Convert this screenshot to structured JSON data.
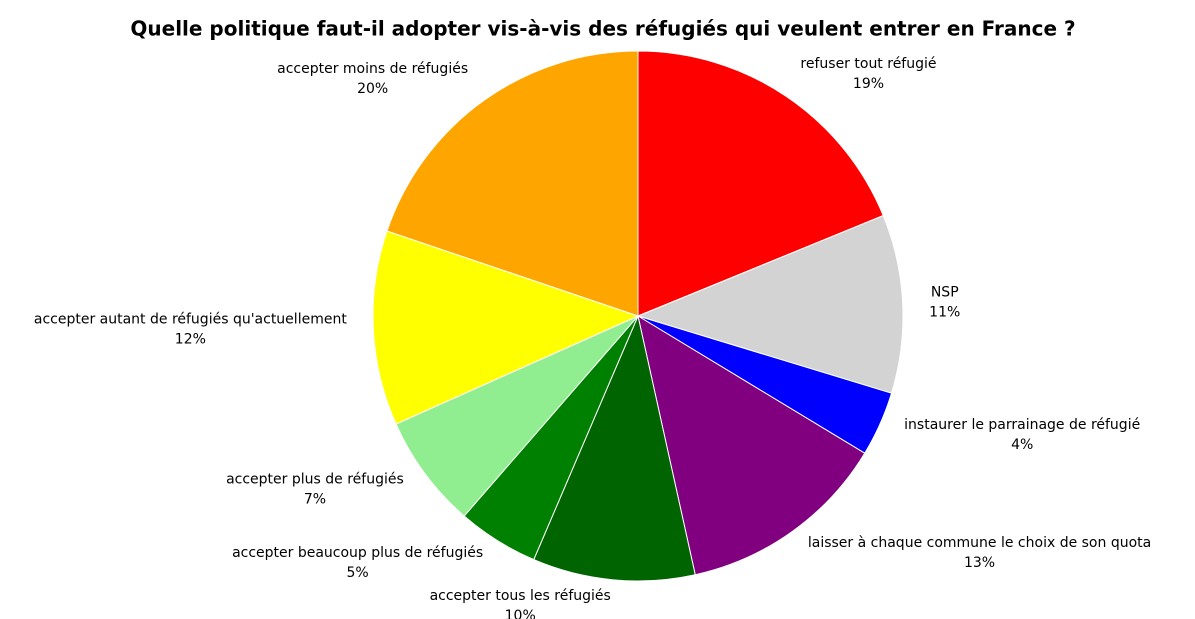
{
  "chart_data": {
    "type": "pie",
    "title": "Quelle politique faut-il adopter vis-à-vis des réfugiés qui veulent entrer en France ?",
    "categories": [
      "refuser tout réfugié",
      "NSP",
      "instaurer le parrainage de réfugié",
      "laisser à chaque commune le choix de son quota",
      "accepter tous les réfugiés",
      "accepter beaucoup plus de réfugiés",
      "accepter plus de réfugiés",
      "accepter autant de réfugiés qu'actuellement",
      "accepter moins de réfugiés"
    ],
    "values": [
      19,
      11,
      4,
      13,
      10,
      5,
      7,
      12,
      20
    ],
    "value_labels": [
      "19%",
      "11%",
      "4%",
      "13%",
      "10%",
      "5%",
      "7%",
      "12%",
      "20%"
    ],
    "colors": [
      "#ff0000",
      "#d3d3d3",
      "#0000ff",
      "#800080",
      "#006400",
      "#008000",
      "#90ee90",
      "#ffff00",
      "#ffa500"
    ]
  }
}
